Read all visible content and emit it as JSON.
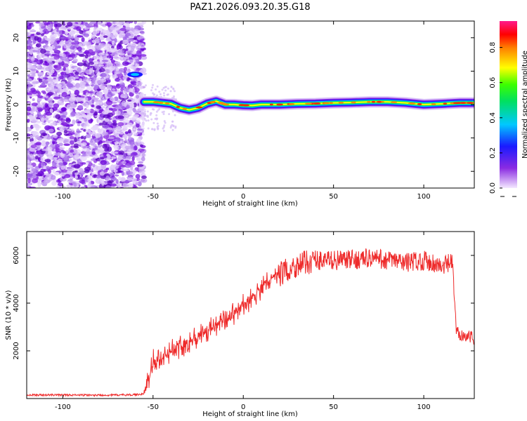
{
  "figure_title": "PAZ1.2026.093.20.35.G18",
  "colors": {
    "snr_line": "#ee2a2a",
    "noise_purple": "#8a2be2",
    "frame": "#000000"
  },
  "chart_data": [
    {
      "type": "heatmap",
      "name": "spectrogram",
      "xlabel": "Height of straight line (km)",
      "ylabel": "Frequency (Hz)",
      "xlim": [
        -120,
        128
      ],
      "ylim": [
        -25,
        25
      ],
      "x_ticks": [
        -100,
        -50,
        0,
        50,
        100
      ],
      "y_ticks": [
        -20,
        -10,
        0,
        10,
        20
      ],
      "colorbar": {
        "label": "Normalized spectral amplitude",
        "range": [
          0.0,
          0.95
        ],
        "ticks": [
          0.0,
          0.2,
          0.4,
          0.6,
          0.8
        ],
        "colormap": "rainbow (purple-blue-cyan-green-yellow-red-pink)"
      },
      "noise_region_x": [
        -120,
        -55
      ],
      "signal_track": {
        "x": [
          -55,
          -50,
          -45,
          -40,
          -35,
          -30,
          -25,
          -20,
          -15,
          -10,
          -5,
          0,
          5,
          10,
          20,
          30,
          40,
          50,
          60,
          70,
          80,
          90,
          100,
          110,
          120,
          128
        ],
        "freq": [
          0.8,
          0.8,
          0.5,
          0.2,
          -1.0,
          -1.6,
          -1.0,
          0.3,
          1.0,
          0.0,
          0.0,
          -0.2,
          -0.3,
          0.0,
          0.0,
          0.2,
          0.3,
          0.5,
          0.6,
          0.8,
          0.8,
          0.5,
          0.0,
          0.2,
          0.5,
          0.5
        ]
      },
      "secondary_blob": {
        "x": -60,
        "freq": 9
      }
    },
    {
      "type": "line",
      "name": "snr",
      "xlabel": "Height of straight line (km)",
      "ylabel": "SNR (10 * v/v)",
      "xlim": [
        -120,
        128
      ],
      "ylim": [
        0,
        7000
      ],
      "x_ticks": [
        -100,
        -50,
        0,
        50,
        100
      ],
      "y_ticks": [
        2000,
        4000,
        6000
      ],
      "series": [
        {
          "x": [
            -120,
            -100,
            -80,
            -60,
            -55,
            -52,
            -50,
            -45,
            -40,
            -35,
            -30,
            -25,
            -20,
            -15,
            -10,
            -5,
            0,
            5,
            10,
            15,
            20,
            25,
            30,
            35,
            40,
            50,
            60,
            70,
            80,
            90,
            100,
            105,
            110,
            115,
            116,
            118,
            120,
            125,
            128
          ],
          "values": [
            150,
            150,
            140,
            160,
            200,
            900,
            1600,
            1800,
            2000,
            2200,
            2400,
            2600,
            2800,
            3000,
            3300,
            3600,
            3900,
            4200,
            4600,
            5000,
            5200,
            5400,
            5600,
            5700,
            5800,
            5800,
            5800,
            5900,
            5800,
            5700,
            5800,
            5700,
            5500,
            5700,
            5600,
            2800,
            2700,
            2600,
            2500
          ]
        }
      ]
    }
  ]
}
